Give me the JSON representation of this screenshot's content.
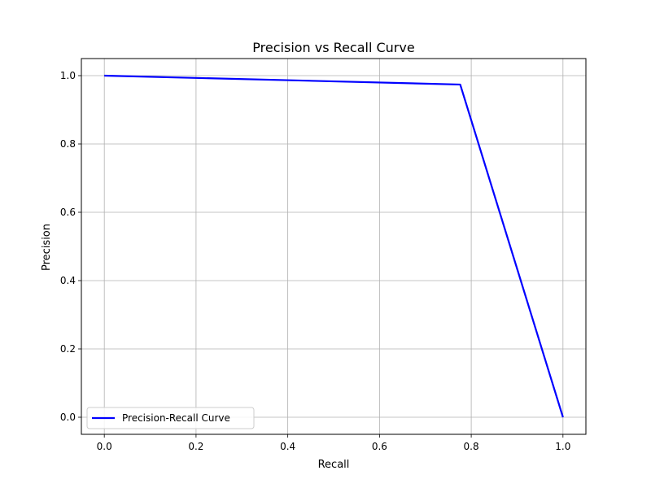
{
  "chart_data": {
    "type": "line",
    "title": "Precision vs Recall Curve",
    "xlabel": "Recall",
    "ylabel": "Precision",
    "xlim": [
      -0.05,
      1.05
    ],
    "ylim": [
      -0.05,
      1.05
    ],
    "x_ticks": [
      0.0,
      0.2,
      0.4,
      0.6,
      0.8,
      1.0
    ],
    "x_tick_labels": [
      "0.0",
      "0.2",
      "0.4",
      "0.6",
      "0.8",
      "1.0"
    ],
    "y_ticks": [
      0.0,
      0.2,
      0.4,
      0.6,
      0.8,
      1.0
    ],
    "y_tick_labels": [
      "0.0",
      "0.2",
      "0.4",
      "0.6",
      "0.8",
      "1.0"
    ],
    "grid": true,
    "legend_position": "lower-left",
    "series": [
      {
        "name": "Precision-Recall Curve",
        "color": "#0000ff",
        "x": [
          0.0,
          0.776,
          1.0
        ],
        "y": [
          1.0,
          0.974,
          0.0
        ]
      }
    ]
  }
}
